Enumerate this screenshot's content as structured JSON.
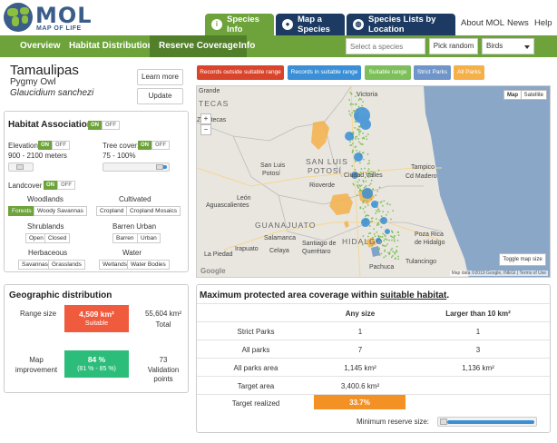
{
  "brand": {
    "name": "MOL",
    "subtitle": "MAP OF LIFE"
  },
  "top_tabs": [
    {
      "label": "Species Info",
      "icon": "info-icon"
    },
    {
      "label": "Map a Species",
      "icon": "map-pin-icon"
    },
    {
      "label": "Species Lists by Location",
      "icon": "globe-icon"
    }
  ],
  "top_links": [
    "About MOL",
    "News",
    "Help"
  ],
  "subnav": {
    "items": [
      "Overview",
      "Habitat Distribution",
      "Reserve Coverage",
      "Info"
    ],
    "search_placeholder": "Select a species",
    "pick_random": "Pick random",
    "taxon": "Birds"
  },
  "species": {
    "common": "Tamaulipas",
    "english": "Pygmy Owl",
    "scientific": "Glaucidium sanchezi",
    "learn_more": "Learn more",
    "update": "Update"
  },
  "legend": [
    {
      "label": "Records outside suitable range",
      "color": "#d9442b"
    },
    {
      "label": "Records in suitable range",
      "color": "#3a8fd6"
    },
    {
      "label": "Suitable range",
      "color": "#7dbf5a"
    },
    {
      "label": "Strict Parks",
      "color": "#6f95c9"
    },
    {
      "label": "All Parks",
      "color": "#f5b04a"
    }
  ],
  "map": {
    "type_map": "Map",
    "type_satellite": "Satellite",
    "zoom_in": "+",
    "zoom_out": "−",
    "toggle": "Toggle map size",
    "attribution": "Map data ©2019 Google, INEGI | Terms of Use",
    "google": "Google",
    "labels": {
      "tecas": "TECAS",
      "zacatecas": "Zacatecas",
      "grande": "Grande",
      "victoria": "Victoria",
      "slp_state": "SAN LUIS",
      "slp_state2": "POTOSÍ",
      "slp_city": "San Luis",
      "slp_city2": "Potosí",
      "ciudad_valles": "Ciudad Valles",
      "tampico": "Tampico",
      "aguascalientes": "Aguascalientes",
      "leon": "León",
      "guanajuato_state": "GUANAJUATO",
      "hidalgo": "HIDALGO",
      "queretaro": "Querétaro",
      "poza_rica": "Poza Rica",
      "poza_rica2": "de Hidalgo",
      "pachuca": "Pachuca",
      "irapuato": "Irapuato",
      "celaya": "Celaya",
      "salamanca": "Salamanca",
      "la_piedad": "La Piedad",
      "santiago": "Santiago de",
      "santiago2": "Querétaro",
      "tulancingo": "Tulancingo",
      "cd_madero": "Cd Madero",
      "rio_verde": "Rioverde"
    }
  },
  "habitat": {
    "title": "Habitat Associations",
    "on": "ON",
    "off": "OFF",
    "elevation_label": "Elevation",
    "elevation_value": "900 - 2100 meters",
    "tree_label": "Tree cover:",
    "tree_value": "75 - 100%",
    "landcover_label": "Landcover",
    "woodlands": "Woodlands",
    "forests": "Forests",
    "woody_savannas": "Woody Savannas",
    "cultivated": "Cultivated",
    "cropland": "Cropland",
    "cropland_mosaics": "Cropland Mosaics",
    "shrublands": "Shrublands",
    "open": "Open",
    "closed": "Closed",
    "barren_urban": "Barren  Urban",
    "barren": "Barren",
    "urban": "Urban",
    "herbaceous": "Herbaceous",
    "savannas": "Savannas",
    "grasslands": "Grasslands",
    "water": "Water",
    "wetlands": "Wetlands",
    "water_bodies": "Water Bodies"
  },
  "geo": {
    "title": "Geographic distribution",
    "range_label": "Range size",
    "range_value": "4,509 km²",
    "range_sub": "Suitable",
    "total_value": "55,604 km²",
    "total_label": "Total",
    "map_label1": "Map",
    "map_label2": "improvement",
    "improve_value": "84 %",
    "improve_range": "(81 %  -  85 %)",
    "validation_value": "73",
    "validation_label1": "Validation",
    "validation_label2": "points",
    "range_color": "#f05a3d",
    "improve_color": "#2dbd7a"
  },
  "coverage": {
    "title_prefix": "Maximum protected area coverage within ",
    "title_link": "suitable habitat",
    "title_suffix": ".",
    "col_any": "Any size",
    "col_large": "Larger than 10 km²",
    "rows": [
      {
        "label": "Strict Parks",
        "any": "1",
        "large": "1"
      },
      {
        "label": "All parks",
        "any": "7",
        "large": "3"
      },
      {
        "label": "All parks area",
        "any": "1,145 km²",
        "large": "1,136 km²"
      },
      {
        "label": "Target area",
        "any": "3,400.6 km²",
        "large": ""
      }
    ],
    "target_realized_label": "Target realized",
    "target_realized_value": "33.7%",
    "target_realized_fraction": 0.337,
    "min_reserve_label": "Minimum reserve size:",
    "bar_color": "#f39124"
  }
}
